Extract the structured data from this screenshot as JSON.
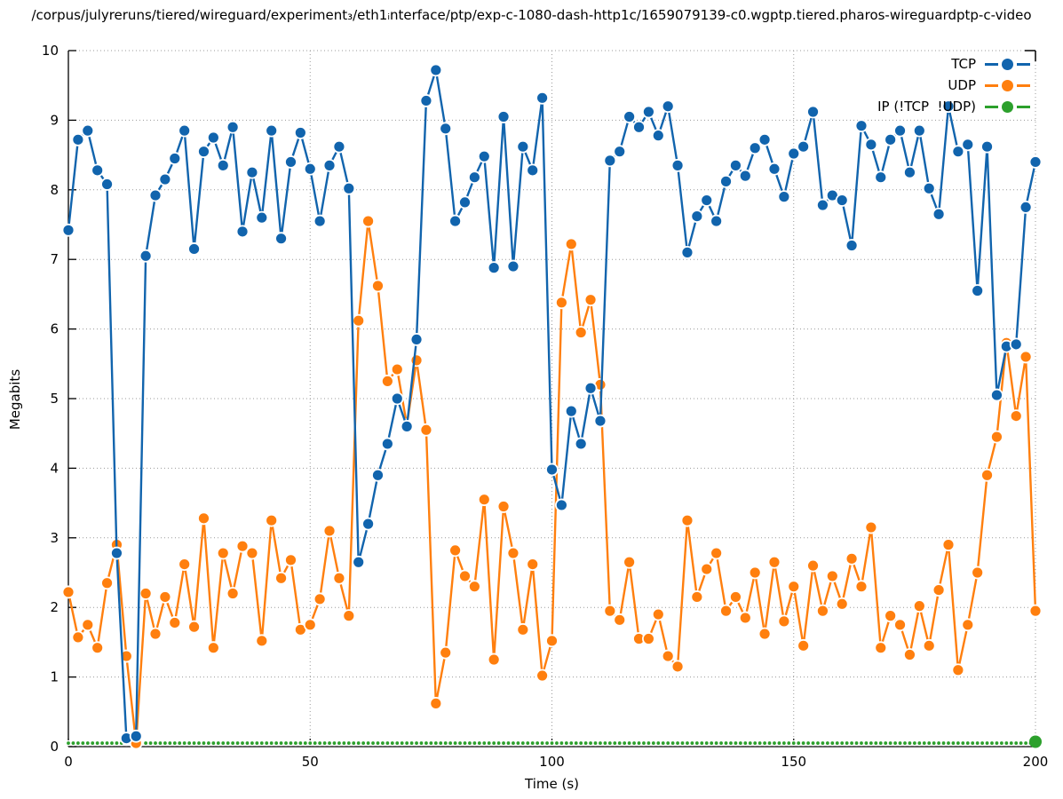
{
  "chart_data": {
    "type": "line",
    "title": "/corpus/julyreruns/tiered/wireguard/experiment₃/eth1ᵢnterface/ptp/exp-c-1080-dash-http1c/1659079139-c0.wgptp.tiered.pharos-wireguardptp-c-video",
    "xlabel": "Time (s)",
    "ylabel": "Megabits",
    "xlim": [
      0,
      200
    ],
    "ylim": [
      0,
      10
    ],
    "x_ticks": [
      0,
      50,
      100,
      150,
      200
    ],
    "x_minor_tick_step": 10,
    "y_ticks": [
      0,
      1,
      2,
      3,
      4,
      5,
      6,
      7,
      8,
      9,
      10
    ],
    "grid": true,
    "legend_position": "top-right",
    "x_step_seconds": 2,
    "series": [
      {
        "name": "TCP",
        "color": "#1164ad",
        "marker": "filled-circle",
        "values": [
          7.42,
          8.72,
          8.85,
          8.28,
          8.08,
          2.78,
          0.12,
          0.15,
          7.05,
          7.92,
          8.15,
          8.45,
          8.85,
          7.15,
          8.55,
          8.75,
          8.35,
          8.9,
          7.4,
          8.25,
          7.6,
          8.85,
          7.3,
          8.4,
          8.82,
          8.3,
          7.55,
          8.35,
          8.62,
          8.02,
          2.65,
          3.2,
          3.9,
          4.35,
          5.0,
          4.6,
          5.85,
          9.28,
          9.72,
          8.88,
          7.55,
          7.82,
          8.18,
          8.48,
          6.88,
          9.05,
          6.9,
          8.62,
          8.28,
          9.32,
          3.98,
          3.47,
          4.82,
          4.35,
          5.15,
          4.68,
          8.42,
          8.55,
          9.05,
          8.9,
          9.12,
          8.78,
          9.2,
          8.35,
          7.1,
          7.62,
          7.85,
          7.55,
          8.12,
          8.35,
          8.2,
          8.6,
          8.72,
          8.3,
          7.9,
          8.52,
          8.62,
          9.12,
          7.78,
          7.92,
          7.85,
          7.2,
          8.92,
          8.65,
          8.18,
          8.72,
          8.85,
          8.25,
          8.85,
          8.02,
          7.65,
          9.2,
          8.55,
          8.65,
          6.55,
          8.62,
          5.05,
          5.75,
          5.78,
          7.75,
          8.4
        ]
      },
      {
        "name": "UDP",
        "color": "#ff7f0e",
        "marker": "filled-circle",
        "values": [
          2.22,
          1.57,
          1.75,
          1.42,
          2.35,
          2.9,
          1.3,
          0.05,
          2.2,
          1.62,
          2.15,
          1.78,
          2.62,
          1.72,
          3.28,
          1.42,
          2.78,
          2.2,
          2.88,
          2.78,
          1.52,
          3.25,
          2.42,
          2.68,
          1.68,
          1.75,
          2.12,
          3.1,
          2.42,
          1.88,
          6.12,
          7.55,
          6.62,
          5.25,
          5.42,
          4.62,
          5.55,
          4.55,
          0.62,
          1.35,
          2.82,
          2.45,
          2.3,
          3.55,
          1.25,
          3.45,
          2.78,
          1.68,
          2.62,
          1.02,
          1.52,
          6.38,
          7.22,
          5.95,
          6.42,
          5.2,
          1.95,
          1.82,
          2.65,
          1.55,
          1.55,
          1.9,
          1.3,
          1.15,
          3.25,
          2.15,
          2.55,
          2.78,
          1.95,
          2.15,
          1.85,
          2.5,
          1.62,
          2.65,
          1.8,
          2.3,
          1.45,
          2.6,
          1.95,
          2.45,
          2.05,
          2.7,
          2.3,
          3.15,
          1.42,
          1.88,
          1.75,
          1.32,
          2.02,
          1.45,
          2.25,
          2.9,
          1.1,
          1.75,
          2.5,
          3.9,
          4.45,
          5.8,
          4.75,
          5.6,
          1.95
        ]
      },
      {
        "name": "IP (!TCP  !UDP)",
        "color": "#2ca02c",
        "marker": "small-circle",
        "constant_value": 0.05,
        "point_interval_seconds": 1,
        "final_point": {
          "t": 200,
          "value": 0.07,
          "large_marker": true
        }
      }
    ]
  }
}
